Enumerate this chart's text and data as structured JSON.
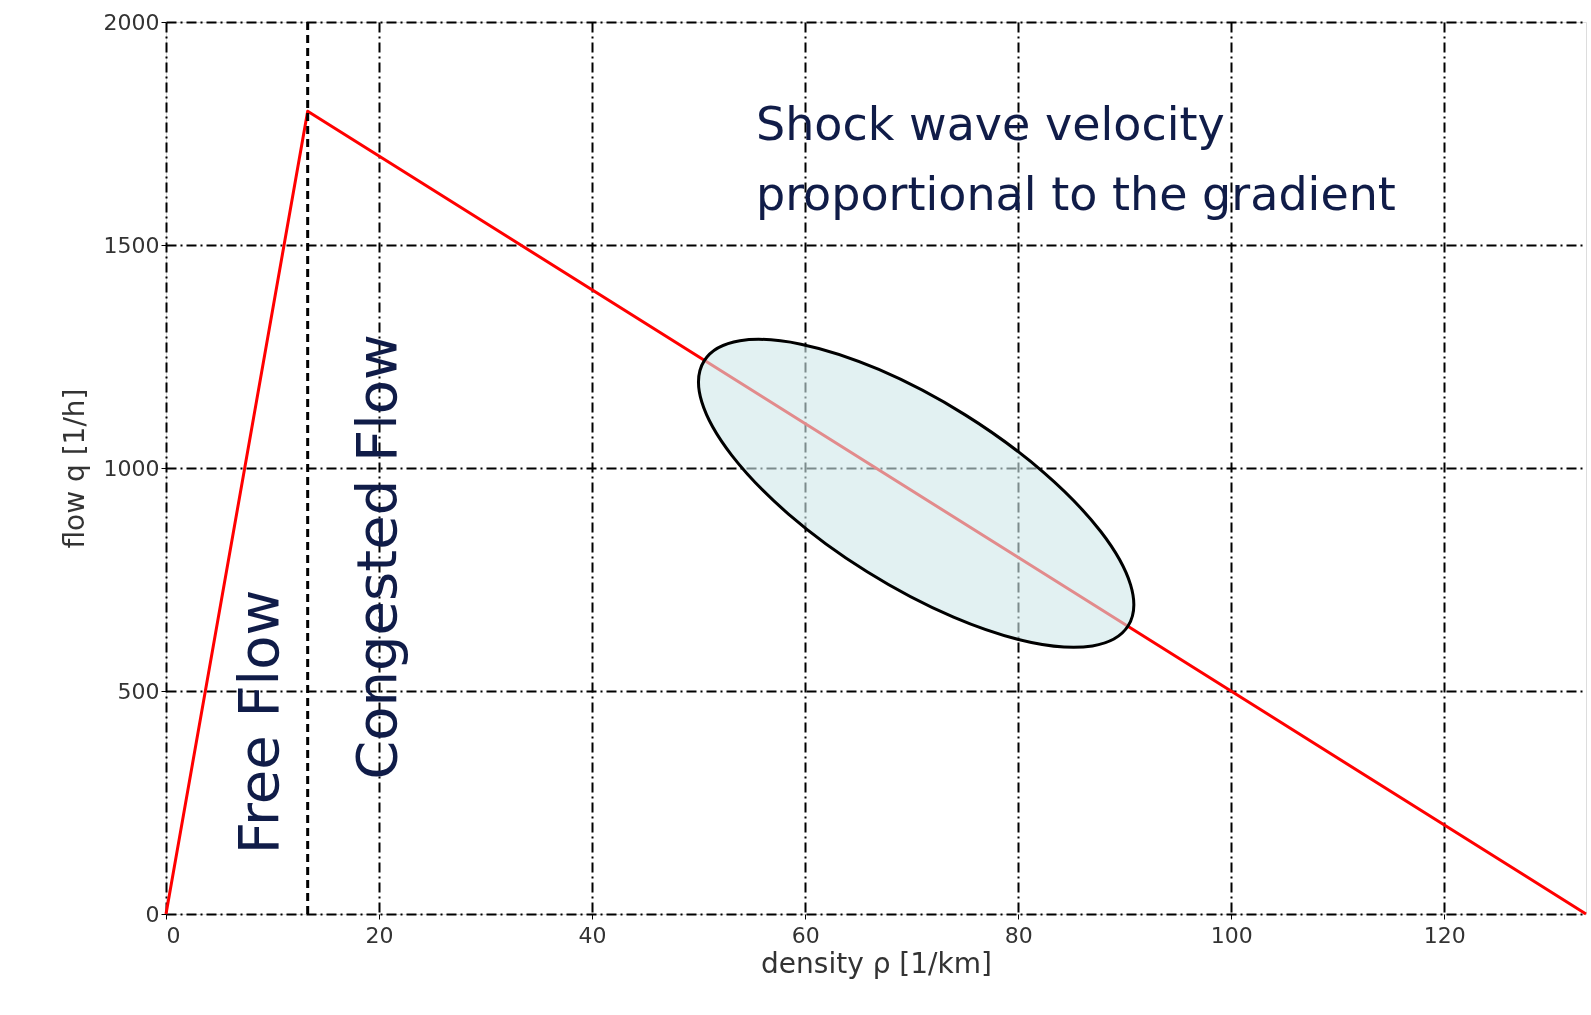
{
  "chart_data": {
    "type": "line",
    "xlabel": "density ρ [1/km]",
    "ylabel": "flow q [1/h]",
    "x": [
      0,
      13.3,
      133.3
    ],
    "series": [
      {
        "color": "#ff0000",
        "values": [
          0,
          1800,
          0
        ]
      }
    ],
    "xlim": [
      0,
      133.3
    ],
    "ylim": [
      0,
      2000
    ],
    "xticks": [
      0,
      20,
      40,
      60,
      80,
      100,
      120
    ],
    "yticks": [
      0,
      500,
      1000,
      1500,
      2000
    ],
    "grid": true,
    "marker": "none",
    "line_style": "solid",
    "ref_lines": [
      {
        "axis": "x",
        "value": 13.3,
        "color": "#000000",
        "line_style": "dashed"
      }
    ],
    "annotations": [
      "Free Flow",
      "Congested Flow",
      "Shock wave velocity\nproportional to the gradient"
    ]
  }
}
